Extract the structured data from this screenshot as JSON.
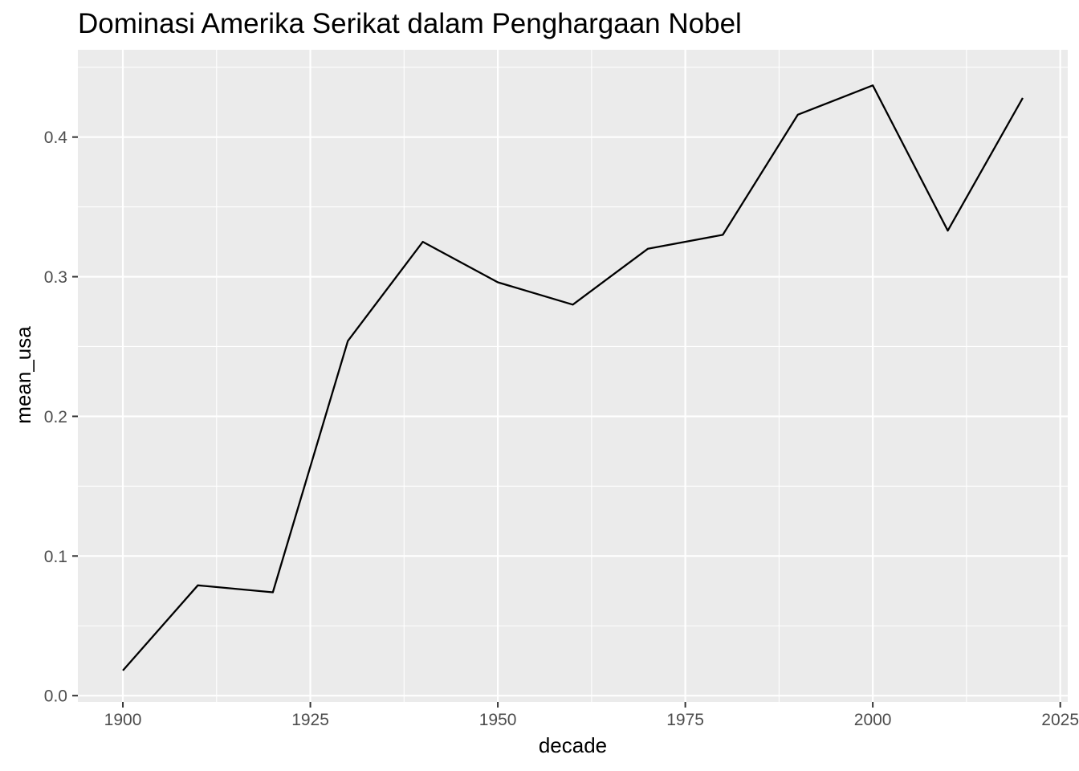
{
  "chart_data": {
    "type": "line",
    "title": "Dominasi Amerika Serikat dalam Penghargaan Nobel",
    "xlabel": "decade",
    "ylabel": "mean_usa",
    "xlim": [
      1894,
      2026
    ],
    "ylim": [
      -0.0045,
      0.4625
    ],
    "x_ticks": [
      1900,
      1925,
      1950,
      1975,
      2000,
      2025
    ],
    "x_tick_labels": [
      "1900",
      "1925",
      "1950",
      "1975",
      "2000",
      "2025"
    ],
    "y_ticks": [
      0.0,
      0.1,
      0.2,
      0.3,
      0.4
    ],
    "y_tick_labels": [
      "0.0",
      "0.1",
      "0.2",
      "0.3",
      "0.4"
    ],
    "grid": true,
    "legend": "none",
    "colors": {
      "panel_background": "#ebebeb",
      "grid_line": "#ffffff",
      "line": "#000000",
      "tick_label": "#4d4d4d",
      "tick_mark": "#333333"
    },
    "series": [
      {
        "x": [
          1900,
          1910,
          1920,
          1930,
          1940,
          1950,
          1960,
          1970,
          1980,
          1990,
          2000,
          2010,
          2020
        ],
        "values": [
          0.018,
          0.079,
          0.074,
          0.254,
          0.325,
          0.296,
          0.28,
          0.32,
          0.33,
          0.416,
          0.437,
          0.333,
          0.428
        ]
      }
    ]
  }
}
